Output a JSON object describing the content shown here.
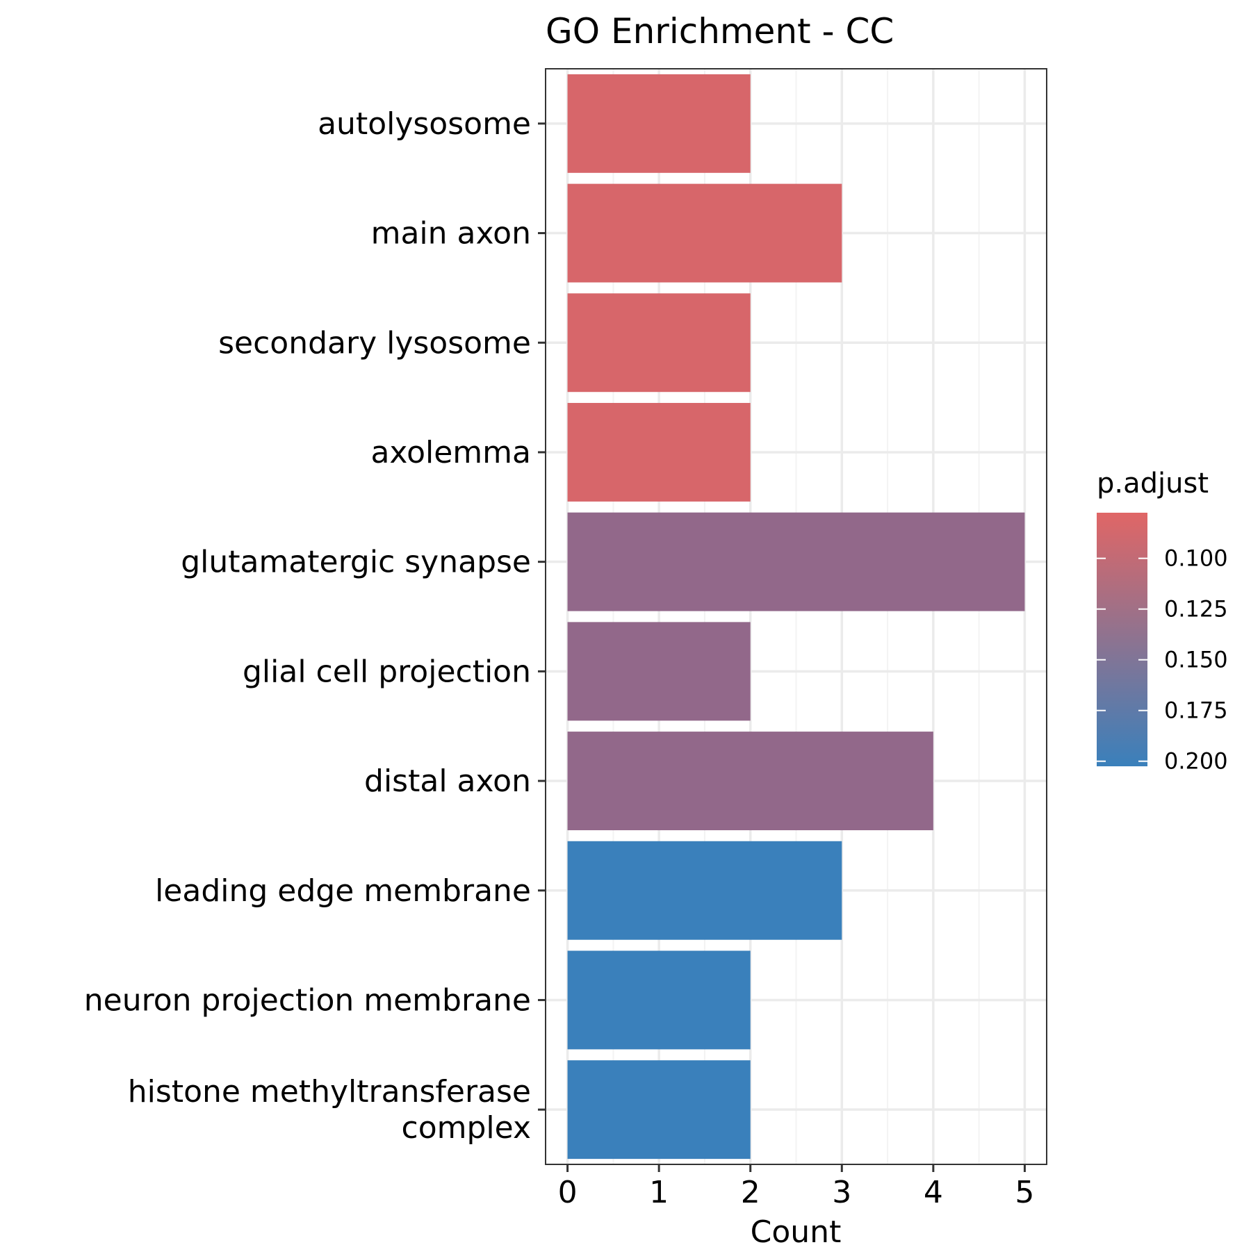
{
  "chart_data": {
    "type": "bar",
    "orientation": "horizontal",
    "title": "GO Enrichment - CC",
    "xlabel": "Count",
    "ylabel": "",
    "xlim": [
      -0.24,
      5.24
    ],
    "x_ticks": [
      0,
      1,
      2,
      3,
      4,
      5
    ],
    "grid": true,
    "categories": [
      [
        "autolysosome"
      ],
      [
        "main axon"
      ],
      [
        "secondary lysosome"
      ],
      [
        "axolemma"
      ],
      [
        "glutamatergic synapse"
      ],
      [
        "glial cell projection"
      ],
      [
        "distal axon"
      ],
      [
        "leading edge membrane"
      ],
      [
        "neuron projection membrane"
      ],
      [
        "histone methyltransferase",
        "complex"
      ]
    ],
    "values": [
      2,
      3,
      2,
      2,
      5,
      2,
      4,
      3,
      2,
      2
    ],
    "p_adjust": [
      0.083,
      0.083,
      0.083,
      0.083,
      0.125,
      0.125,
      0.125,
      0.208,
      0.208,
      0.208
    ],
    "legend": {
      "title": "p.adjust",
      "placement": "right",
      "ticks": [
        0.1,
        0.125,
        0.15,
        0.175,
        0.2
      ],
      "tick_labels": [
        "0.100",
        "0.125",
        "0.150",
        "0.175",
        "0.200"
      ],
      "range": [
        0.0775,
        0.2025
      ],
      "color_low": "#e06666",
      "color_high": "#3a80bb"
    },
    "colors": {
      "gradient_low": "#e06666",
      "gradient_high": "#3a80bb",
      "grid_major": "#ebebeb",
      "grid_minor": "#f3f3f3",
      "panel_border": "#333333"
    }
  }
}
